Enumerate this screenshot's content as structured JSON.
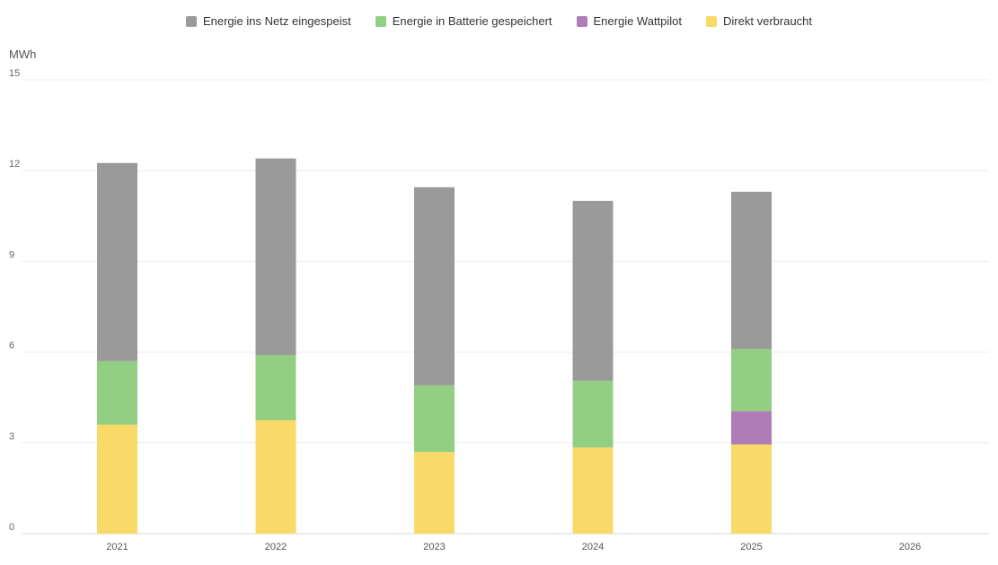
{
  "chart_data": {
    "type": "bar",
    "stacked": true,
    "unit_label": "MWh",
    "categories": [
      "2021",
      "2022",
      "2023",
      "2024",
      "2025",
      "2026"
    ],
    "series": [
      {
        "name": "Direkt verbraucht",
        "color": "#f9d967",
        "values": [
          3.6,
          3.75,
          2.7,
          2.85,
          2.95,
          0
        ]
      },
      {
        "name": "Energie Wattpilot",
        "color": "#b07cb8",
        "values": [
          0,
          0,
          0,
          0,
          1.1,
          0
        ]
      },
      {
        "name": "Energie in Batterie gespeichert",
        "color": "#93cf82",
        "values": [
          2.1,
          2.15,
          2.2,
          2.2,
          2.05,
          0
        ]
      },
      {
        "name": "Energie ins Netz eingespeist",
        "color": "#9a9a9a",
        "values": [
          6.55,
          6.5,
          6.55,
          5.95,
          5.2,
          0
        ]
      }
    ],
    "ylim": [
      0,
      15
    ],
    "yticks": [
      "0",
      "3",
      "6",
      "9",
      "12",
      "15"
    ],
    "legend_order": [
      "Energie ins Netz eingespeist",
      "Energie in Batterie gespeichert",
      "Energie Wattpilot",
      "Direkt verbraucht"
    ],
    "legend_position": "top-center"
  }
}
